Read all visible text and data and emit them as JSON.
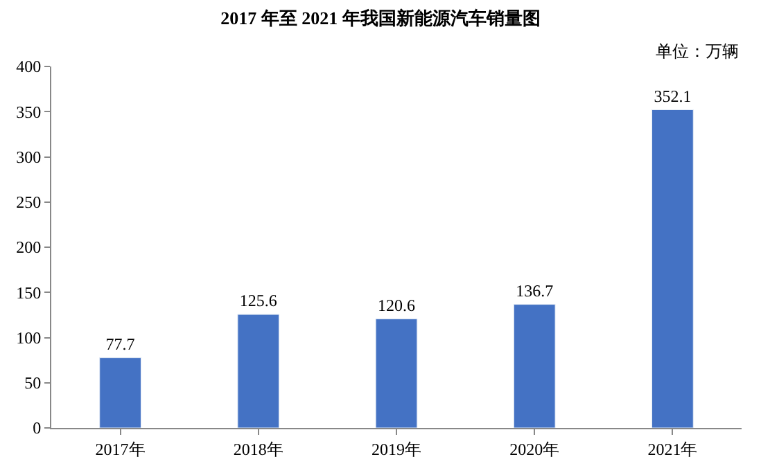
{
  "chart_data": {
    "type": "bar",
    "title": "2017 年至 2021 年我国新能源汽车销量图",
    "annotations": [
      "单位：万辆"
    ],
    "categories": [
      "2017年",
      "2018年",
      "2019年",
      "2020年",
      "2021年"
    ],
    "values": [
      77.7,
      125.6,
      120.6,
      136.7,
      352.1
    ],
    "color": "#4472c4",
    "data_labels": true,
    "ylim": [
      0,
      400
    ],
    "yticks": [
      0,
      50,
      100,
      150,
      200,
      250,
      300,
      350,
      400
    ]
  }
}
